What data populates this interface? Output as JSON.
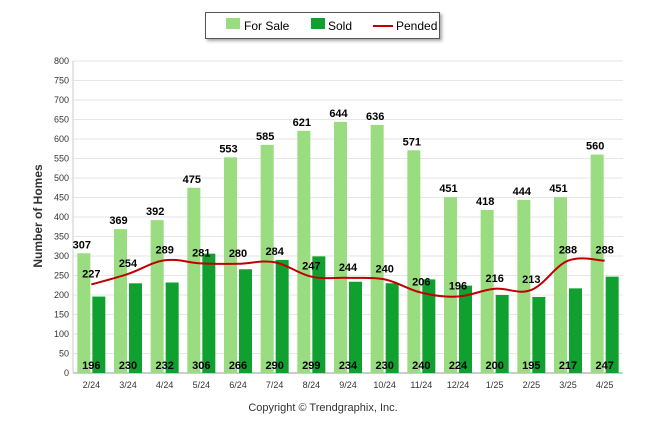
{
  "chart_data": {
    "type": "bar",
    "title": "",
    "xlabel": "",
    "ylabel": "Number of Homes",
    "ylim": [
      0,
      800
    ],
    "yticks": [
      0,
      50,
      100,
      150,
      200,
      250,
      300,
      350,
      400,
      450,
      500,
      550,
      600,
      650,
      700,
      750,
      800
    ],
    "categories": [
      "2/24",
      "3/24",
      "4/24",
      "5/24",
      "6/24",
      "7/24",
      "8/24",
      "9/24",
      "10/24",
      "11/24",
      "12/24",
      "1/25",
      "2/25",
      "3/25",
      "4/25"
    ],
    "series": [
      {
        "name": "For Sale",
        "type": "bar",
        "color": "#99dd80",
        "values": [
          307,
          369,
          392,
          475,
          553,
          585,
          621,
          644,
          636,
          571,
          451,
          418,
          444,
          451,
          560
        ]
      },
      {
        "name": "Sold",
        "type": "bar",
        "color": "#10a030",
        "values": [
          196,
          230,
          232,
          306,
          266,
          290,
          299,
          234,
          230,
          240,
          224,
          200,
          195,
          217,
          247
        ]
      },
      {
        "name": "Pended",
        "type": "line",
        "color": "#c00000",
        "values": [
          227,
          254,
          289,
          281,
          280,
          284,
          247,
          244,
          240,
          206,
          196,
          216,
          213,
          288,
          288
        ]
      }
    ],
    "legend_position": "top-center",
    "grid": true
  },
  "copyright": "Copyright © Trendgraphix, Inc."
}
